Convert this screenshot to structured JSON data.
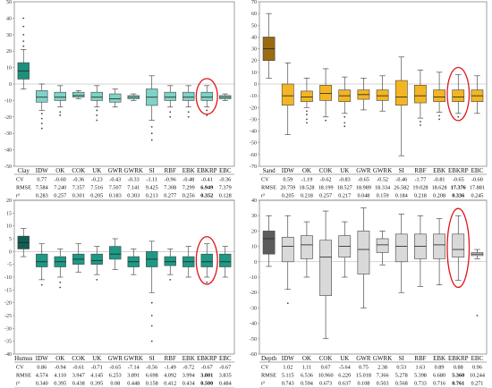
{
  "categories": [
    "IDW",
    "OK",
    "COK",
    "UK",
    "GWR",
    "GWRK",
    "SI",
    "RBF",
    "EBK",
    "EBKRP",
    "EBC"
  ],
  "stat_labels": [
    "CV",
    "RMSE",
    "r²"
  ],
  "chart_data": [
    {
      "type": "box",
      "variable": "Clay",
      "ylim": [
        -50,
        50
      ],
      "yticks": [
        -50,
        -40,
        -30,
        -20,
        -10,
        0,
        10,
        20,
        30,
        40,
        50
      ],
      "box_color": "#7fd3c6",
      "first_box_color": "#1e8f7d",
      "highlight": "EBKRP",
      "boxes": [
        {
          "cat": "Clay",
          "q1": 3,
          "med": 8,
          "q3": 13,
          "lo": -3,
          "hi": 21,
          "out": [
            23,
            26,
            30,
            35,
            40
          ]
        },
        {
          "cat": "IDW",
          "q1": -11,
          "med": -8,
          "q3": -4,
          "lo": -16,
          "hi": 0,
          "out": [
            -18,
            -21,
            -24,
            -27
          ]
        },
        {
          "cat": "OK",
          "q1": -10,
          "med": -8,
          "q3": -5,
          "lo": -14,
          "hi": -1,
          "out": [
            -17,
            -19
          ]
        },
        {
          "cat": "COK",
          "q1": -8,
          "med": -7,
          "q3": -5,
          "lo": -9,
          "hi": -4,
          "out": []
        },
        {
          "cat": "UK",
          "q1": -10,
          "med": -8,
          "q3": -5,
          "lo": -14,
          "hi": -1,
          "out": [
            -16,
            -19,
            -22
          ]
        },
        {
          "cat": "GWR",
          "q1": -11,
          "med": -9,
          "q3": -6,
          "lo": -14,
          "hi": -3,
          "out": []
        },
        {
          "cat": "GWRK",
          "q1": -9,
          "med": -8,
          "q3": -7,
          "lo": -10,
          "hi": -6,
          "out": []
        },
        {
          "cat": "SI",
          "q1": -13,
          "med": -8,
          "q3": -3,
          "lo": -22,
          "hi": 5,
          "out": [
            -26,
            -30,
            -34
          ]
        },
        {
          "cat": "RBF",
          "q1": -10,
          "med": -8,
          "q3": -5,
          "lo": -14,
          "hi": -1,
          "out": [
            -17,
            -20
          ]
        },
        {
          "cat": "EBK",
          "q1": -10,
          "med": -8,
          "q3": -5,
          "lo": -14,
          "hi": -1,
          "out": [
            -17,
            -20
          ]
        },
        {
          "cat": "EBKRP",
          "q1": -10,
          "med": -8,
          "q3": -5,
          "lo": -14,
          "hi": -1,
          "out": [
            -16,
            -19
          ]
        },
        {
          "cat": "EBC",
          "q1": -9,
          "med": -8,
          "q3": -7,
          "lo": -10,
          "hi": -6,
          "out": []
        }
      ],
      "stats": {
        "CV": [
          "0.77",
          "-0.60",
          "-0.36",
          "-0.23",
          "-0.43",
          "-0.33",
          "-1.11",
          "-0.96",
          "-0.48",
          "-0.41",
          "-0.36"
        ],
        "RMSE": [
          "7.584",
          "7.240",
          "7.357",
          "7.516",
          "7.507",
          "7.141",
          "9.425",
          "7.308",
          "7.299",
          "6.949",
          "7.379"
        ],
        "r²": [
          "0.283",
          "0.257",
          "0.301",
          "0.205",
          "0.183",
          "0.303",
          "0.213",
          "0.277",
          "0.256",
          "0.352",
          "0.128"
        ]
      },
      "bold_index": 9
    },
    {
      "type": "box",
      "variable": "Sand",
      "ylim": [
        -70,
        70
      ],
      "yticks": [
        -70,
        -60,
        -50,
        -40,
        -30,
        -20,
        -10,
        0,
        10,
        20,
        30,
        40,
        50,
        60,
        70
      ],
      "box_color": "#f2b524",
      "first_box_color": "#9a6b12",
      "highlight": "EBKRP",
      "boxes": [
        {
          "cat": "Sand",
          "q1": 20,
          "med": 30,
          "q3": 40,
          "lo": 5,
          "hi": 60,
          "out": []
        },
        {
          "cat": "IDW",
          "q1": -18,
          "med": -10,
          "q3": 0,
          "lo": -43,
          "hi": 18,
          "out": []
        },
        {
          "cat": "OK",
          "q1": -15,
          "med": -11,
          "q3": -6,
          "lo": -20,
          "hi": 5,
          "out": [
            -23,
            -26,
            -30,
            -33
          ]
        },
        {
          "cat": "COK",
          "q1": -14,
          "med": -8,
          "q3": -1,
          "lo": -28,
          "hi": 13,
          "out": [
            -31
          ]
        },
        {
          "cat": "UK",
          "q1": -15,
          "med": -10,
          "q3": -5,
          "lo": -25,
          "hi": 6,
          "out": [
            -28,
            -33,
            -36
          ]
        },
        {
          "cat": "GWR",
          "q1": -13,
          "med": -9,
          "q3": -5,
          "lo": -22,
          "hi": 5,
          "out": []
        },
        {
          "cat": "GWRK",
          "q1": -14,
          "med": -10,
          "q3": -5,
          "lo": -23,
          "hi": 7,
          "out": []
        },
        {
          "cat": "SI",
          "q1": -18,
          "med": -11,
          "q3": 3,
          "lo": -61,
          "hi": 23,
          "out": []
        },
        {
          "cat": "RBF",
          "q1": -16,
          "med": -10,
          "q3": -1,
          "lo": -29,
          "hi": 12,
          "out": [
            -32,
            -35
          ]
        },
        {
          "cat": "EBK",
          "q1": -15,
          "med": -11,
          "q3": -5,
          "lo": -24,
          "hi": 10,
          "out": [
            -27,
            -30
          ]
        },
        {
          "cat": "EBKRP",
          "q1": -15,
          "med": -11,
          "q3": -5,
          "lo": -25,
          "hi": 8,
          "out": [
            -28
          ]
        },
        {
          "cat": "EBC",
          "q1": -15,
          "med": -10,
          "q3": -5,
          "lo": -25,
          "hi": 7,
          "out": []
        }
      ],
      "stats": {
        "CV": [
          "0.59",
          "-1.19",
          "-0.62",
          "-0.83",
          "-0.65",
          "-0.52",
          "-0.46",
          "-1.77",
          "-0.81",
          "-0.65",
          "-0.60"
        ],
        "RMSE": [
          "20.759",
          "18.528",
          "18.199",
          "18.527",
          "18.989",
          "18.334",
          "26.582",
          "19.028",
          "18.628",
          "17.376",
          "17.881"
        ],
        "r²": [
          "0.205",
          "0.218",
          "0.257",
          "0.217",
          "0.048",
          "0.159",
          "0.184",
          "0.218",
          "0.208",
          "0.336",
          "0.245"
        ]
      },
      "bold_index": 9
    },
    {
      "type": "box",
      "variable": "Humus",
      "ylim": [
        -40,
        20
      ],
      "yticks": [
        -40,
        -35,
        -30,
        -25,
        -20,
        -15,
        -10,
        -5,
        0,
        5,
        10,
        15,
        20
      ],
      "box_color": "#1d9a86",
      "first_box_color": "#115f52",
      "highlight": "EBKRP",
      "boxes": [
        {
          "cat": "Humus",
          "q1": 1,
          "med": 3.5,
          "q3": 6,
          "lo": -2,
          "hi": 9,
          "out": []
        },
        {
          "cat": "IDW",
          "q1": -6,
          "med": -4,
          "q3": -1,
          "lo": -11,
          "hi": 3,
          "out": [
            -13
          ]
        },
        {
          "cat": "OK",
          "q1": -6,
          "med": -4,
          "q3": -2,
          "lo": -10,
          "hi": 1,
          "out": [
            -12,
            -14
          ]
        },
        {
          "cat": "COK",
          "q1": -5,
          "med": -3,
          "q3": -1,
          "lo": -8,
          "hi": 3,
          "out": []
        },
        {
          "cat": "UK",
          "q1": -5,
          "med": -3.5,
          "q3": -1,
          "lo": -9,
          "hi": 2,
          "out": [
            -11
          ]
        },
        {
          "cat": "GWR",
          "q1": -3,
          "med": -1,
          "q3": 2,
          "lo": -7,
          "hi": 5,
          "out": []
        },
        {
          "cat": "GWRK",
          "q1": -6,
          "med": -4,
          "q3": -2,
          "lo": -9,
          "hi": 1,
          "out": []
        },
        {
          "cat": "SI",
          "q1": -6,
          "med": -3,
          "q3": 0,
          "lo": -16,
          "hi": 4,
          "out": [
            -20,
            -25,
            -29,
            -35
          ]
        },
        {
          "cat": "RBF",
          "q1": -5.5,
          "med": -4,
          "q3": -2,
          "lo": -9,
          "hi": 1,
          "out": [
            -11
          ]
        },
        {
          "cat": "EBK",
          "q1": -6,
          "med": -4,
          "q3": -2,
          "lo": -10,
          "hi": 2,
          "out": []
        },
        {
          "cat": "EBKRP",
          "q1": -6,
          "med": -4,
          "q3": -1,
          "lo": -10,
          "hi": 3,
          "out": [
            -12
          ]
        },
        {
          "cat": "EBC",
          "q1": -6,
          "med": -4,
          "q3": -1,
          "lo": -10,
          "hi": 2,
          "out": []
        }
      ],
      "stats": {
        "CV": [
          "0.86",
          "-0.94",
          "-0.61",
          "-0.71",
          "-0.65",
          "-7.14",
          "-0.56",
          "-1.49",
          "-0.72",
          "-0.67",
          "-0.67"
        ],
        "RMSE": [
          "4.574",
          "4.110",
          "3.947",
          "4.145",
          "6.253",
          "3.891",
          "6.698",
          "4.092",
          "3.994",
          "3.801",
          "3.835"
        ],
        "r²": [
          "0.340",
          "0.395",
          "0.438",
          "0.395",
          "0.08",
          "0.448",
          "0.158",
          "0.412",
          "0.434",
          "0.500",
          "0.484"
        ]
      },
      "bold_index": 9
    },
    {
      "type": "box",
      "variable": "Depth",
      "ylim": [
        -60,
        40
      ],
      "yticks": [
        -60,
        -50,
        -40,
        -30,
        -20,
        -10,
        0,
        10,
        20,
        30,
        40
      ],
      "box_color": "#d9d9d9",
      "first_box_color": "#5c5c5c",
      "highlight": "EBKRP",
      "boxes": [
        {
          "cat": "Depth",
          "q1": 5,
          "med": 15,
          "q3": 20,
          "lo": -3,
          "hi": 30,
          "out": []
        },
        {
          "cat": "IDW",
          "q1": 0,
          "med": 10,
          "q3": 16,
          "lo": -18,
          "hi": 30,
          "out": [
            -27
          ]
        },
        {
          "cat": "OK",
          "q1": 2,
          "med": 11,
          "q3": 17,
          "lo": -10,
          "hi": 26,
          "out": []
        },
        {
          "cat": "COK",
          "q1": -22,
          "med": 3,
          "q3": 14,
          "lo": -50,
          "hi": 33,
          "out": []
        },
        {
          "cat": "UK",
          "q1": 3,
          "med": 10,
          "q3": 17,
          "lo": -10,
          "hi": 26,
          "out": []
        },
        {
          "cat": "GWR",
          "q1": -8,
          "med": 8,
          "q3": 20,
          "lo": -30,
          "hi": 35,
          "out": []
        },
        {
          "cat": "GWRK",
          "q1": 6,
          "med": 11,
          "q3": 15,
          "lo": -2,
          "hi": 20,
          "out": []
        },
        {
          "cat": "SI",
          "q1": 0,
          "med": 10,
          "q3": 18,
          "lo": -20,
          "hi": 31,
          "out": []
        },
        {
          "cat": "RBF",
          "q1": 2,
          "med": 10,
          "q3": 18,
          "lo": -16,
          "hi": 30,
          "out": []
        },
        {
          "cat": "EBK",
          "q1": 2,
          "med": 11,
          "q3": 18,
          "lo": -15,
          "hi": 28,
          "out": []
        },
        {
          "cat": "EBKRP",
          "q1": 3,
          "med": 8,
          "q3": 18,
          "lo": -12,
          "hi": 30,
          "out": []
        },
        {
          "cat": "EBC",
          "q1": 4,
          "med": 5,
          "q3": 6,
          "lo": 2,
          "hi": 8,
          "out": [
            -35
          ]
        }
      ],
      "stats": {
        "CV": [
          "1.02",
          "1.11",
          "0.67",
          "-5.64",
          "0.75",
          "2.38",
          "0.53",
          "1.63",
          "0.89",
          "0.88",
          "0.96"
        ],
        "RMSE": [
          "5.115",
          "6.536",
          "10.960",
          "6.220",
          "15.018",
          "7.366",
          "5.278",
          "5.398",
          "6.680",
          "5.360",
          "10.244"
        ],
        "r²": [
          "0.743",
          "0.594",
          "0.673",
          "0.637",
          "0.108",
          "0.503",
          "0.568",
          "0.733",
          "0.716",
          "0.761",
          "0.271"
        ]
      },
      "bold_index": 9
    }
  ]
}
